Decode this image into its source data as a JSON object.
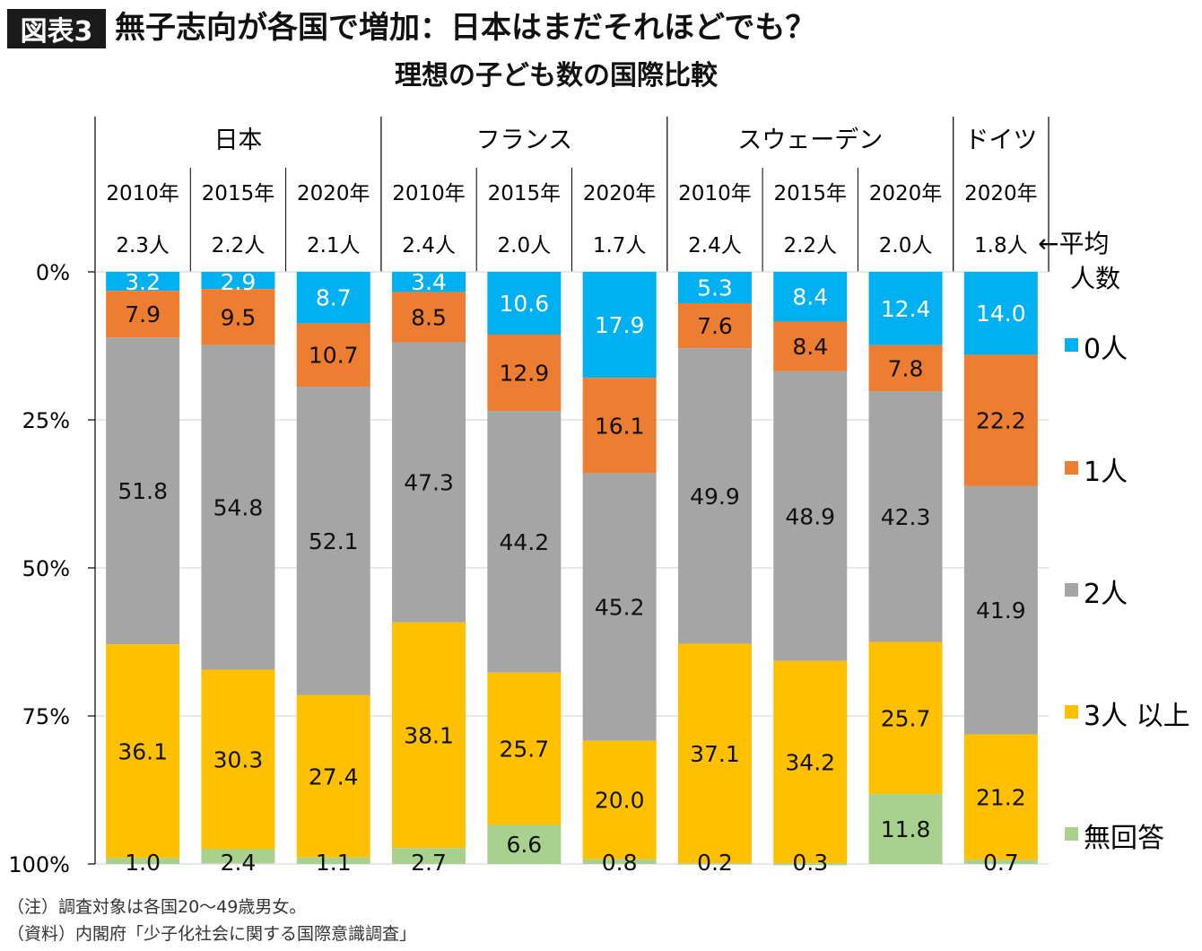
{
  "header": {
    "badge": "図表3",
    "title": "無子志向が各国で増加：日本はまだそれほどでも？",
    "subtitle": "理想の子ども数の国際比較"
  },
  "notes": {
    "note": "（注）調査対象は各国20～49歳男女。",
    "source": "（資料）内閣府「少子化社会に関する国際意識調査」"
  },
  "chart_data": {
    "type": "bar",
    "stacked": true,
    "orientation": "vertical",
    "y_axis": {
      "ticks": [
        "0%",
        "25%",
        "50%",
        "75%",
        "100%"
      ],
      "ylim": [
        0,
        100
      ],
      "inverted": true,
      "grid": true
    },
    "groups": [
      {
        "name": "日本",
        "span": 3
      },
      {
        "name": "フランス",
        "span": 3
      },
      {
        "name": "スウェーデン",
        "span": 3
      },
      {
        "name": "ドイツ",
        "span": 1
      }
    ],
    "categories": [
      "2010年",
      "2015年",
      "2020年",
      "2010年",
      "2015年",
      "2020年",
      "2010年",
      "2015年",
      "2020年",
      "2020年"
    ],
    "average_label": "←平均人数",
    "averages": [
      "2.3人",
      "2.2人",
      "2.1人",
      "2.4人",
      "2.0人",
      "1.7人",
      "2.4人",
      "2.2人",
      "2.0人",
      "1.8人"
    ],
    "series": [
      {
        "name": "0人",
        "color": "#00B0F0",
        "values": [
          3.2,
          2.9,
          8.7,
          3.4,
          10.6,
          17.9,
          5.3,
          8.4,
          12.4,
          14.0
        ]
      },
      {
        "name": "1人",
        "color": "#ED7D31",
        "values": [
          7.9,
          9.5,
          10.7,
          8.5,
          12.9,
          16.1,
          7.6,
          8.4,
          7.8,
          22.2
        ]
      },
      {
        "name": "2人",
        "color": "#A5A5A5",
        "values": [
          51.8,
          54.8,
          52.1,
          47.3,
          44.2,
          45.2,
          49.9,
          48.9,
          42.3,
          41.9
        ]
      },
      {
        "name": "3人以上",
        "color": "#FFC000",
        "values": [
          36.1,
          30.3,
          27.4,
          38.1,
          25.7,
          20.0,
          37.1,
          34.2,
          25.7,
          21.2
        ]
      },
      {
        "name": "無回答",
        "color": "#A9D18E",
        "values": [
          1.0,
          2.4,
          1.1,
          2.7,
          6.6,
          0.8,
          0.2,
          0.3,
          11.8,
          0.7
        ]
      }
    ],
    "value_labels": [
      [
        "3.2",
        "2.9",
        "8.7",
        "3.4",
        "10.6",
        "17.9",
        "5.3",
        "8.4",
        "12.4",
        "14.0"
      ],
      [
        "7.9",
        "9.5",
        "10.7",
        "8.5",
        "12.9",
        "16.1",
        "7.6",
        "8.4",
        "7.8",
        "22.2"
      ],
      [
        "51.8",
        "54.8",
        "52.1",
        "47.3",
        "44.2",
        "45.2",
        "49.9",
        "48.9",
        "42.3",
        "41.9"
      ],
      [
        "36.1",
        "30.3",
        "27.4",
        "38.1",
        "25.7",
        "20.0",
        "37.1",
        "34.2",
        "25.7",
        "21.2"
      ],
      [
        "1.0",
        "2.4",
        "1.1",
        "2.7",
        "6.6",
        "0.8",
        "0.2",
        "0.3",
        "11.8",
        "0.7"
      ]
    ],
    "legend_labels": [
      "0人",
      "1人",
      "2人",
      "3人 以上",
      "無回答"
    ],
    "legend_position": "right"
  }
}
